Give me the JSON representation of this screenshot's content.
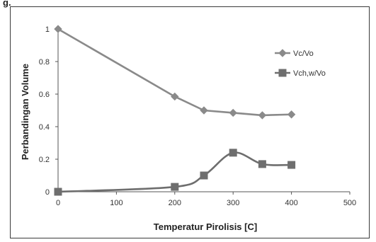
{
  "figure": {
    "label": "g."
  },
  "chart_data": {
    "type": "line",
    "xlabel": "Temperatur Pirolisis [C]",
    "ylabel": "Perbandingan Volume",
    "xlim": [
      0,
      500
    ],
    "ylim": [
      0,
      1
    ],
    "x_ticks": [
      "0",
      "100",
      "200",
      "300",
      "400",
      "500"
    ],
    "y_ticks": [
      "0",
      "0.2",
      "0.4",
      "0.6",
      "0.8",
      "1"
    ],
    "grid": false,
    "legend_position": "right",
    "series": [
      {
        "name": "Vc/Vo",
        "marker": "diamond",
        "color": "#8a8a8a",
        "x": [
          0,
          200,
          250,
          300,
          350,
          400
        ],
        "y": [
          1.0,
          0.585,
          0.5,
          0.485,
          0.47,
          0.475
        ]
      },
      {
        "name": "Vch,w/Vo",
        "marker": "square",
        "color": "#6e6e6e",
        "x": [
          0,
          200,
          250,
          300,
          350,
          400
        ],
        "y": [
          0.0,
          0.03,
          0.1,
          0.24,
          0.17,
          0.165
        ]
      }
    ]
  }
}
